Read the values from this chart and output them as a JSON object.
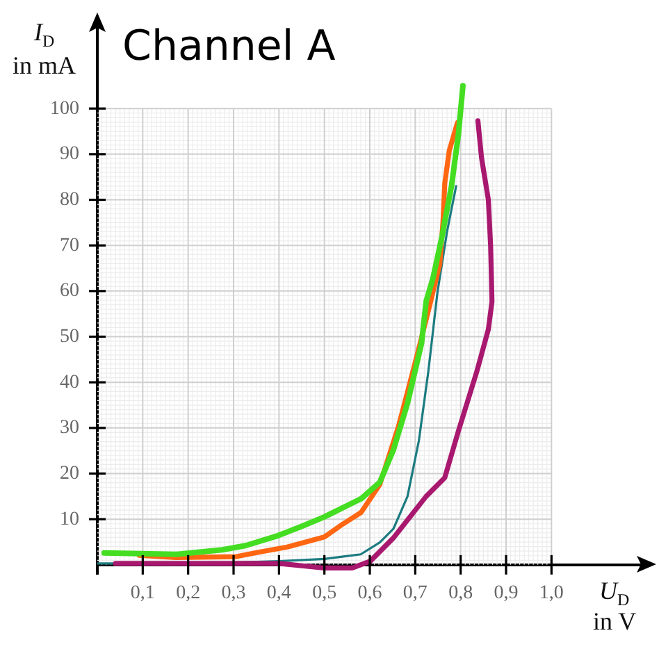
{
  "chart_data": {
    "type": "line",
    "title": "Channel A",
    "xlabel": "U$_{D}$ in V",
    "ylabel": "I$_{D}$ in mA",
    "xlim": [
      0,
      1.2
    ],
    "ylim": [
      -2,
      118
    ],
    "xticks": [
      {
        "value": 0.1,
        "label": "0,1"
      },
      {
        "value": 0.2,
        "label": "0,2"
      },
      {
        "value": 0.3,
        "label": "0,3"
      },
      {
        "value": 0.4,
        "label": "0,4"
      },
      {
        "value": 0.5,
        "label": "0,5"
      },
      {
        "value": 0.6,
        "label": "0,6"
      },
      {
        "value": 0.7,
        "label": "0,7"
      },
      {
        "value": 0.8,
        "label": "0,8"
      },
      {
        "value": 0.9,
        "label": "0,9"
      },
      {
        "value": 1.0,
        "label": "1,0"
      }
    ],
    "yticks": [
      10,
      20,
      30,
      40,
      50,
      60,
      70,
      80,
      90,
      100
    ],
    "grid": true,
    "legend": false,
    "marker": "none",
    "line_style": "solid",
    "series": [
      {
        "color": "#1b7b80",
        "x": [
          0,
          0.1,
          0.2,
          0.3,
          0.4,
          0.5,
          0.58,
          0.622,
          0.652,
          0.683,
          0.708,
          0.729,
          0.749,
          0.77,
          0.79
        ],
        "values": [
          0.3,
          0.3,
          0.4,
          0.5,
          0.8,
          1.3,
          2.3,
          4.9,
          7.9,
          15,
          27.2,
          42.5,
          59.8,
          73,
          83
        ]
      },
      {
        "color": "#a8186f",
        "x": [
          0.04,
          0.2,
          0.4,
          0.5,
          0.561,
          0.601,
          0.652,
          0.724,
          0.765,
          0.795,
          0.836,
          0.861,
          0.869,
          0.866,
          0.861,
          0.846,
          0.838
        ],
        "values": [
          0.3,
          0.3,
          0.3,
          -0.7,
          -0.7,
          0.8,
          5.9,
          15,
          19.1,
          29.3,
          42.5,
          51.6,
          57.7,
          69.9,
          80,
          89.2,
          97.3
        ]
      },
      {
        "color": "#ff6611",
        "x": [
          0.092,
          0.173,
          0.306,
          0.357,
          0.418,
          0.5,
          0.54,
          0.581,
          0.622,
          0.663,
          0.703,
          0.734,
          0.754,
          0.761,
          0.765,
          0.775,
          0.793
        ],
        "values": [
          2.1,
          1.6,
          1.8,
          2.8,
          3.9,
          6.1,
          8.9,
          11.5,
          17.6,
          30.3,
          45.5,
          57.7,
          65.9,
          75,
          83.6,
          90.8,
          96.9
        ]
      },
      {
        "color": "#44dd22",
        "x": [
          0.015,
          0.173,
          0.275,
          0.326,
          0.398,
          0.449,
          0.5,
          0.52,
          0.581,
          0.622,
          0.652,
          0.683,
          0.714,
          0.724,
          0.739,
          0.759,
          0.78,
          0.795,
          0.805
        ],
        "values": [
          2.6,
          2.3,
          3.3,
          4.2,
          6.4,
          8.4,
          10.5,
          11.5,
          14.5,
          18.1,
          25.2,
          35.4,
          48.6,
          57.7,
          62.8,
          72,
          83.1,
          94.3,
          105
        ]
      }
    ]
  }
}
